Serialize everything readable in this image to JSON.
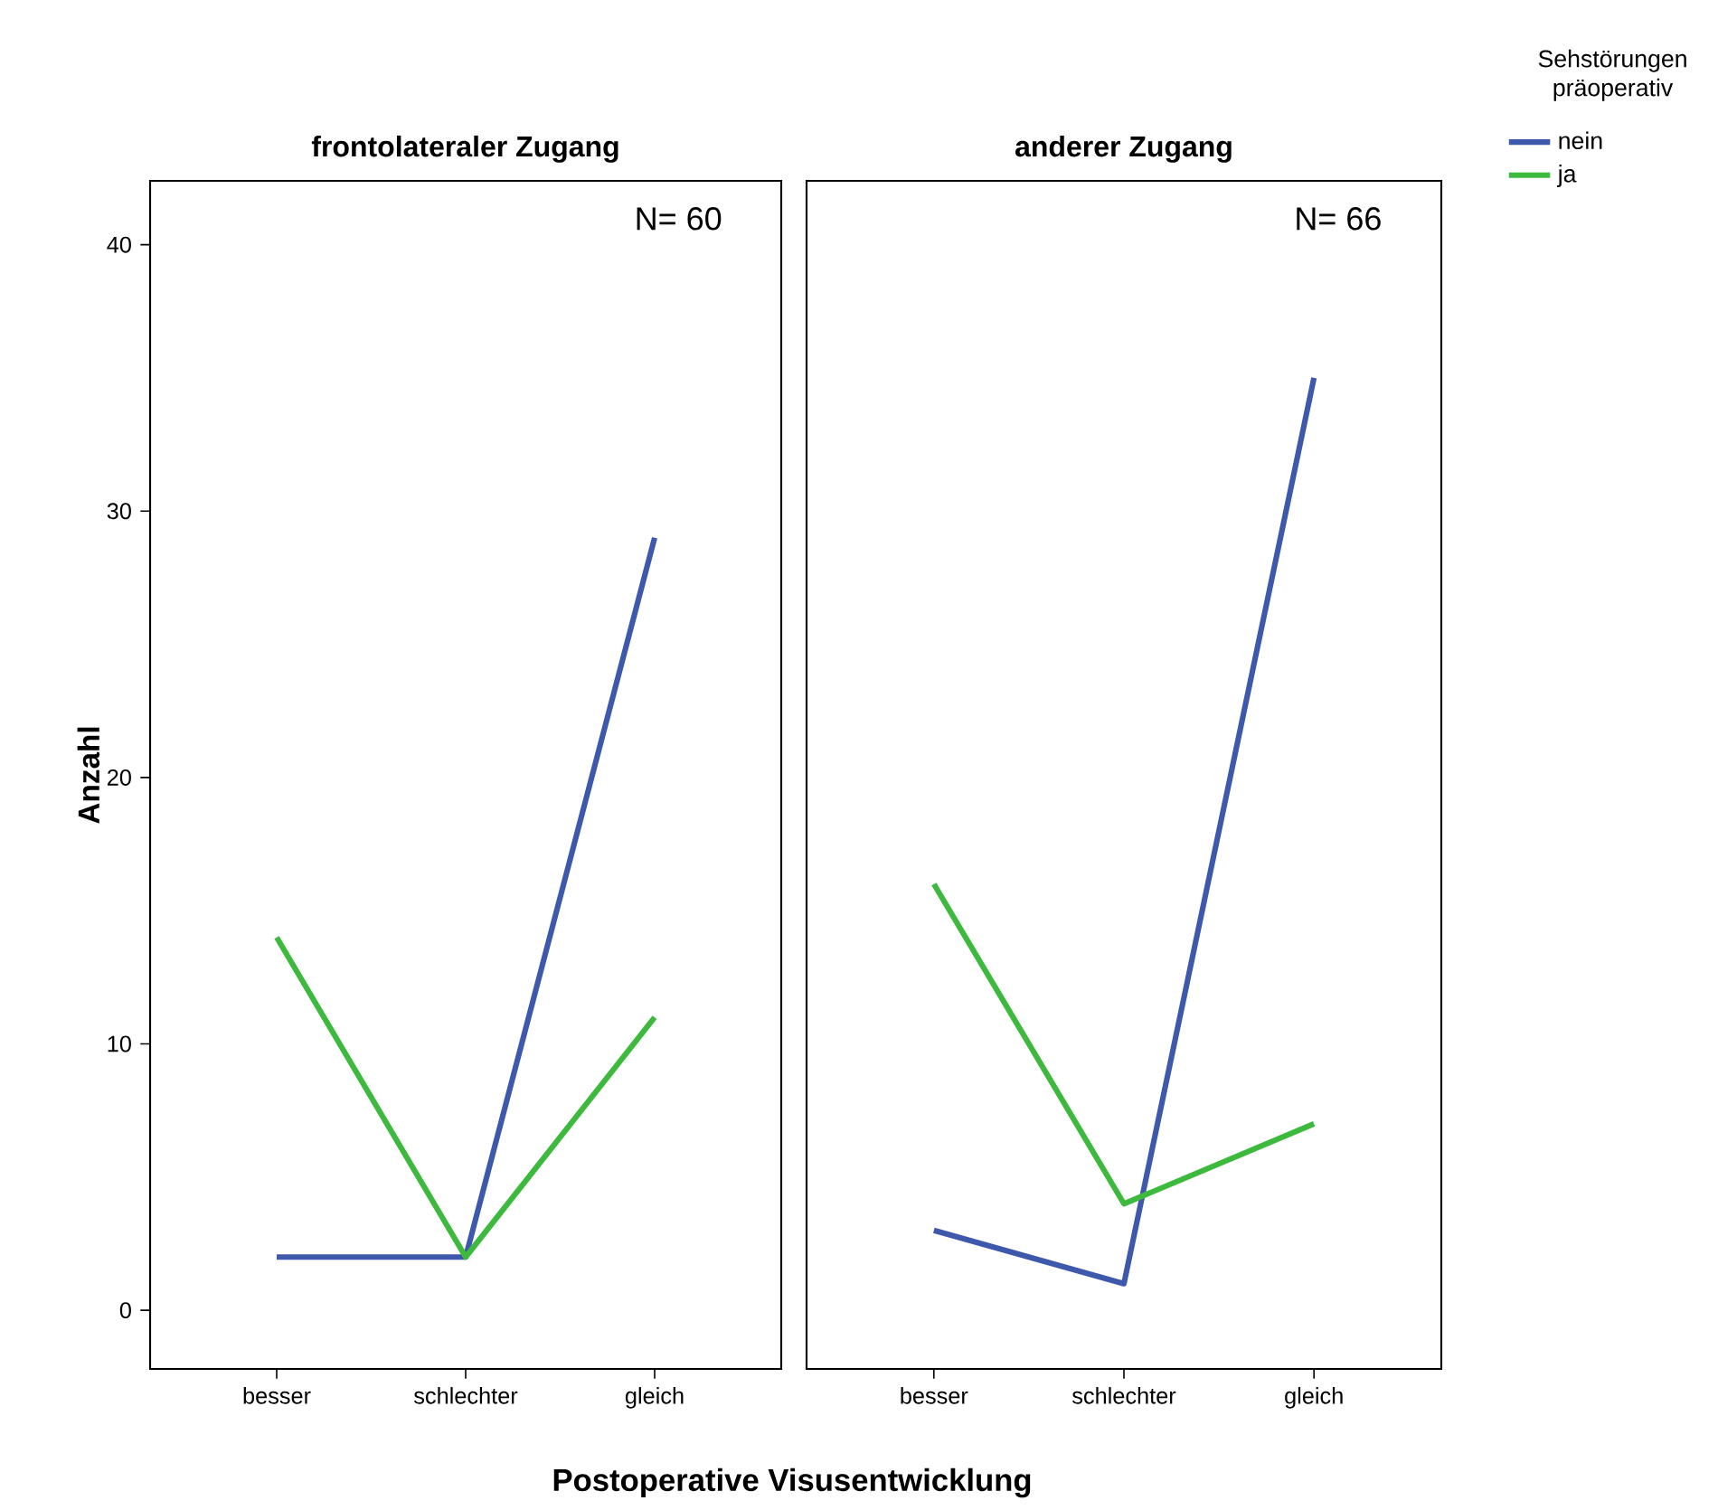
{
  "chart_data": [
    {
      "type": "line",
      "title": "frontolateraler Zugang",
      "xlabel": "Postoperative Visusentwicklung",
      "ylabel": "Anzahl",
      "categories": [
        "besser",
        "schlechter",
        "gleich"
      ],
      "series": [
        {
          "color": "#3e58ac",
          "values": [
            2,
            2,
            29
          ]
        },
        {
          "color": "#3dba3d",
          "values": [
            14,
            2,
            11
          ]
        }
      ],
      "ylim": [
        -2.2,
        42.4
      ],
      "yticks": [
        0,
        10,
        20,
        30,
        40
      ],
      "annotations": [
        "N= 60"
      ],
      "grid": false,
      "legend": false,
      "marker": "none",
      "line_style": "solid"
    },
    {
      "type": "line",
      "title": "anderer Zugang",
      "legend_title": "Sehstörungen präoperativ",
      "categories": [
        "besser",
        "schlechter",
        "gleich"
      ],
      "series": [
        {
          "name": "nein",
          "color": "#3e58ac",
          "values": [
            3,
            1,
            35
          ]
        },
        {
          "name": "ja",
          "color": "#3dba3d",
          "values": [
            16,
            4,
            7
          ]
        }
      ],
      "ylim": [
        -2.2,
        42.4
      ],
      "tick_labels": "x",
      "annotations": [
        "N= 66"
      ],
      "grid": false,
      "legend": "right",
      "marker": "none",
      "line_style": "solid"
    }
  ]
}
